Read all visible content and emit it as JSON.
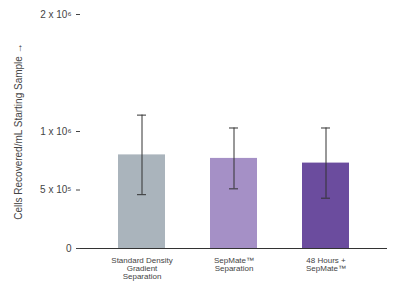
{
  "chart_data": {
    "type": "bar",
    "y_label": "Cells Recovered/mL Starting Sample",
    "categories": [
      "Standard Density Gradient Separation",
      "SepMate™ Separation",
      "48 Hours + SepMate™"
    ],
    "values": [
      800000,
      770000,
      730000
    ],
    "errors": [
      340000,
      260000,
      300000
    ],
    "colors": [
      "#aab4bc",
      "#a590c6",
      "#6b4c9e"
    ],
    "ylim": [
      0,
      2000000
    ],
    "yticks": [
      0,
      {
        "value": 500000,
        "label": "5 x 10⁵"
      },
      {
        "value": 1000000,
        "label": "1 x 10⁶"
      },
      {
        "value": 2000000,
        "label": "2 x 10⁶"
      }
    ],
    "grid": false
  }
}
